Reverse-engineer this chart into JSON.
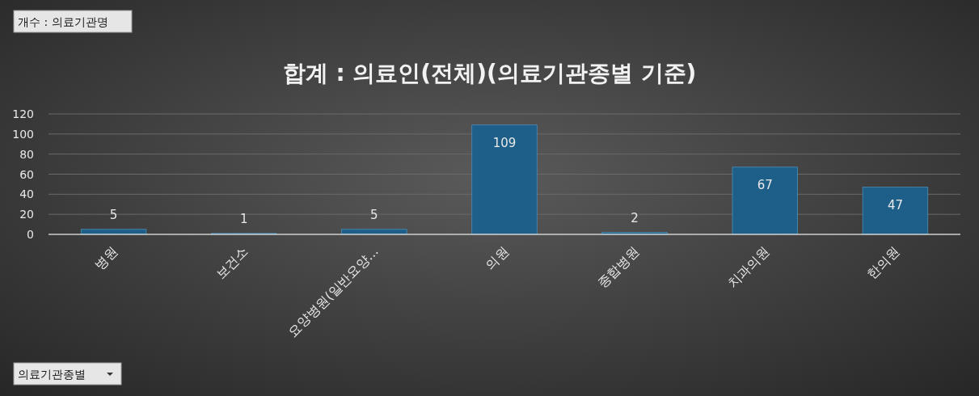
{
  "chart_data": {
    "type": "bar",
    "title": "합계 : 의료인(전체)(의료기관종별 기준)",
    "categories": [
      "병원",
      "보건소",
      "요양병원(일반요양...",
      "의원",
      "종합병원",
      "치과의원",
      "한의원"
    ],
    "values": [
      5,
      1,
      5,
      109,
      2,
      67,
      47
    ],
    "color": "#1d5f88",
    "ylim": [
      0,
      120
    ],
    "yticks": [
      0,
      20,
      40,
      60,
      80,
      100,
      120
    ],
    "grid": "y",
    "data_labels": true,
    "annotations": [
      "개수 : 의료기관명",
      "의료기관종별"
    ]
  }
}
